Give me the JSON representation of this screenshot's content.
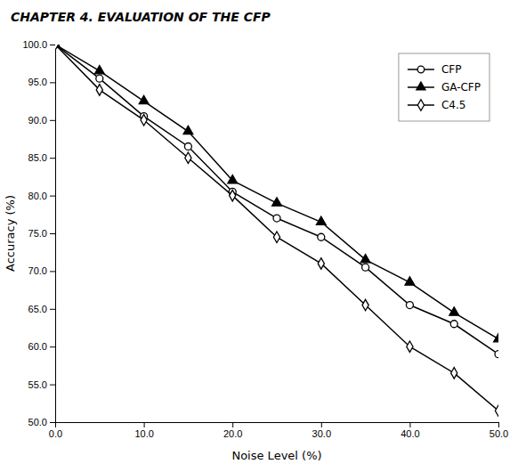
{
  "chart_data": {
    "type": "line",
    "title": "CHAPTER 4.   EVALUATION OF THE CFP",
    "x_label": "Noise Level (%)",
    "y_label": "Accuracy (%)",
    "x": [
      0,
      5,
      10,
      15,
      20,
      25,
      30,
      35,
      40,
      45,
      50
    ],
    "series": [
      {
        "name": "CFP",
        "color": "#000000",
        "marker": "circle",
        "values": [
          100.0,
          95.5,
          90.5,
          86.5,
          80.5,
          77.0,
          74.5,
          70.5,
          65.5,
          63.0,
          59.0
        ]
      },
      {
        "name": "GA-CFP",
        "color": "#000000",
        "marker": "triangle",
        "values": [
          100.0,
          96.5,
          92.5,
          88.5,
          82.0,
          79.0,
          76.5,
          71.5,
          68.5,
          64.5,
          61.0
        ]
      },
      {
        "name": "C4.5",
        "color": "#000000",
        "marker": "diamond",
        "values": [
          100.0,
          94.0,
          90.0,
          85.0,
          80.0,
          74.5,
          71.0,
          65.5,
          60.0,
          56.5,
          51.5
        ]
      }
    ],
    "xlim": [
      0,
      50
    ],
    "ylim": [
      50.0,
      100.0
    ],
    "xticks": [
      {
        "value": 0,
        "label": "0.0"
      },
      {
        "value": 10,
        "label": "10.0"
      },
      {
        "value": 20,
        "label": "20.0"
      },
      {
        "value": 30,
        "label": "30.0"
      },
      {
        "value": 40,
        "label": "40.0"
      },
      {
        "value": 50,
        "label": "50.0"
      }
    ],
    "yticks": [
      {
        "value": 50,
        "label": "50.0"
      },
      {
        "value": 55,
        "label": "55.0"
      },
      {
        "value": 60,
        "label": "60.0"
      },
      {
        "value": 65,
        "label": "65.0"
      },
      {
        "value": 70,
        "label": "70.0"
      },
      {
        "value": 75,
        "label": "75.0"
      },
      {
        "value": 80,
        "label": "80.0"
      },
      {
        "value": 85,
        "label": "85.0"
      },
      {
        "value": 90,
        "label": "90.0"
      },
      {
        "value": 95,
        "label": "95.0"
      },
      {
        "value": 100,
        "label": "100.0"
      }
    ],
    "grid": false,
    "legend": "upper right"
  }
}
